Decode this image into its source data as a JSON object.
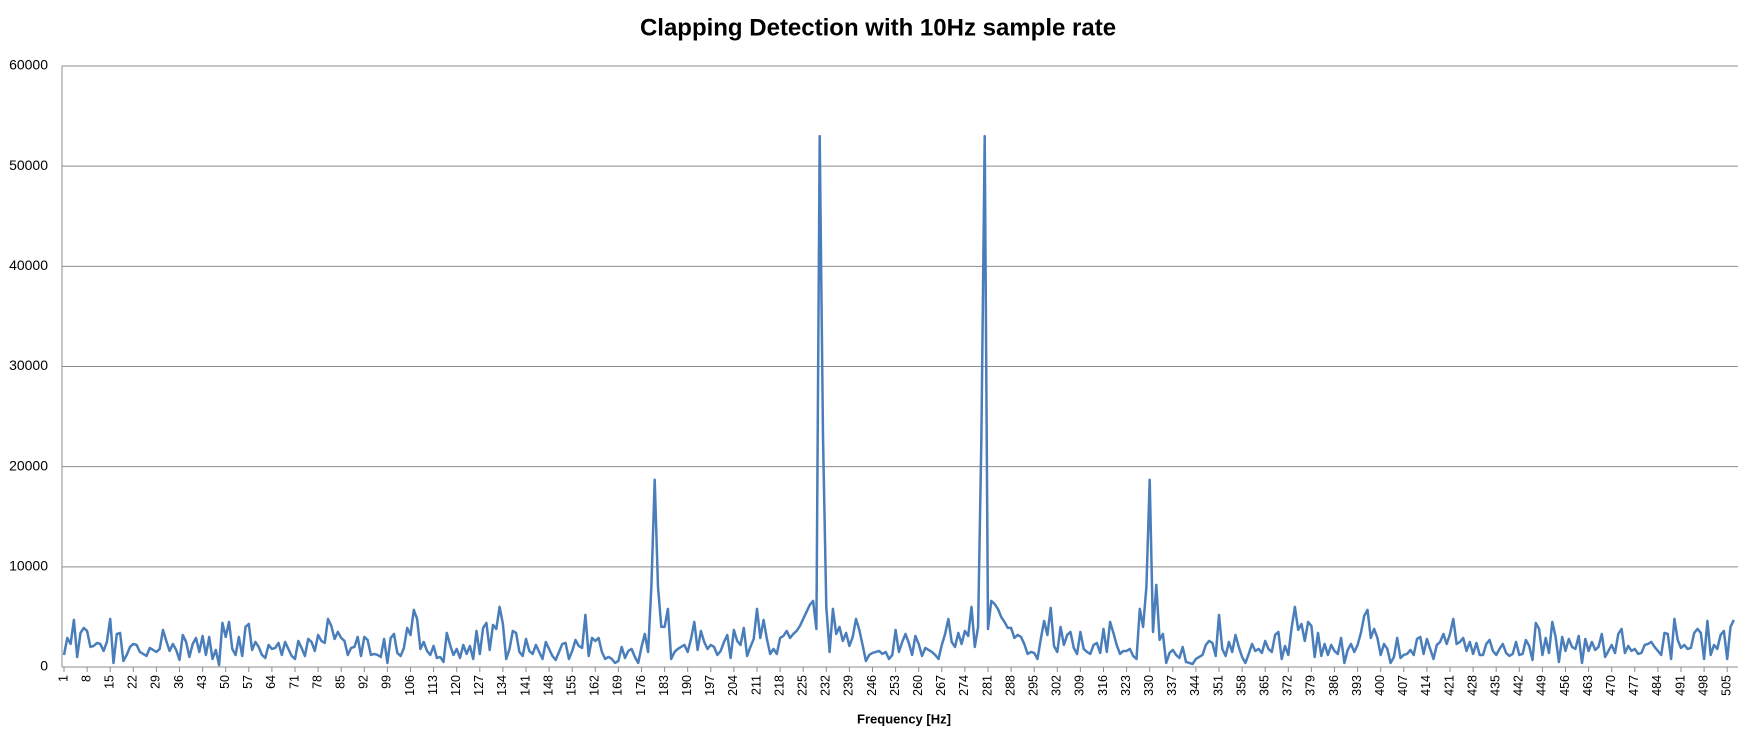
{
  "chart_data": {
    "type": "line",
    "title": "Clapping Detection with 10Hz sample rate",
    "x_label": "Frequency [Hz]",
    "categories": [
      1,
      null,
      null,
      null,
      null,
      null,
      null,
      8,
      null,
      null,
      null,
      null,
      null,
      null,
      15,
      null,
      null,
      null,
      null,
      null,
      null,
      22,
      null,
      null,
      null,
      null,
      null,
      null,
      29,
      null,
      null,
      null,
      null,
      null,
      null,
      36,
      null,
      null,
      null,
      null,
      null,
      null,
      43,
      null,
      null,
      null,
      null,
      null,
      null,
      50,
      null,
      null,
      null,
      null,
      null,
      null,
      57,
      null,
      null,
      null,
      null,
      null,
      null,
      64,
      null,
      null,
      null,
      null,
      null,
      null,
      71,
      null,
      null,
      null,
      null,
      null,
      null,
      78,
      null,
      null,
      null,
      null,
      null,
      null,
      85,
      null,
      null,
      null,
      null,
      null,
      null,
      92,
      null,
      null,
      null,
      null,
      null,
      null,
      99,
      null,
      null,
      null,
      null,
      null,
      null,
      106,
      null,
      null,
      null,
      null,
      null,
      null,
      113,
      null,
      null,
      null,
      null,
      null,
      null,
      120,
      null,
      null,
      null,
      null,
      null,
      null,
      127,
      null,
      null,
      null,
      null,
      null,
      null,
      134,
      null,
      null,
      null,
      null,
      null,
      null,
      141,
      null,
      null,
      null,
      null,
      null,
      null,
      148,
      null,
      null,
      null,
      null,
      null,
      null,
      155,
      null,
      null,
      null,
      null,
      null,
      null,
      162,
      null,
      null,
      null,
      null,
      null,
      null,
      169,
      null,
      null,
      null,
      null,
      null,
      null,
      176,
      null,
      null,
      null,
      null,
      null,
      null,
      183,
      null,
      null,
      null,
      null,
      null,
      null,
      190,
      null,
      null,
      null,
      null,
      null,
      null,
      197,
      null,
      null,
      null,
      null,
      null,
      null,
      204,
      null,
      null,
      null,
      null,
      null,
      null,
      211,
      null,
      null,
      null,
      null,
      null,
      null,
      218,
      null,
      null,
      null,
      null,
      null,
      null,
      225,
      null,
      null,
      null,
      null,
      null,
      null,
      232,
      null,
      null,
      null,
      null,
      null,
      null,
      239,
      null,
      null,
      null,
      null,
      null,
      null,
      246,
      null,
      null,
      null,
      null,
      null,
      null,
      253,
      null,
      null,
      null,
      null,
      null,
      null,
      260,
      null,
      null,
      null,
      null,
      null,
      null,
      267,
      null,
      null,
      null,
      null,
      null,
      null,
      274,
      null,
      null,
      null,
      null,
      null,
      null,
      281,
      null,
      null,
      null,
      null,
      null,
      null,
      288,
      null,
      null,
      null,
      null,
      null,
      null,
      295,
      null,
      null,
      null,
      null,
      null,
      null,
      302,
      null,
      null,
      null,
      null,
      null,
      null,
      309,
      null,
      null,
      null,
      null,
      null,
      null,
      316,
      null,
      null,
      null,
      null,
      null,
      null,
      323,
      null,
      null,
      null,
      null,
      null,
      null,
      330,
      null,
      null,
      null,
      null,
      null,
      null,
      337,
      null,
      null,
      null,
      null,
      null,
      null,
      344,
      null,
      null,
      null,
      null,
      null,
      null,
      351,
      null,
      null,
      null,
      null,
      null,
      null,
      358,
      null,
      null,
      null,
      null,
      null,
      null,
      365,
      null,
      null,
      null,
      null,
      null,
      null,
      372,
      null,
      null,
      null,
      null,
      null,
      null,
      379,
      null,
      null,
      null,
      null,
      null,
      null,
      386,
      null,
      null,
      null,
      null,
      null,
      null,
      393,
      null,
      null,
      null,
      null,
      null,
      null,
      400,
      null,
      null,
      null,
      null,
      null,
      null,
      407,
      null,
      null,
      null,
      null,
      null,
      null,
      414,
      null,
      null,
      null,
      null,
      null,
      null,
      421,
      null,
      null,
      null,
      null,
      null,
      null,
      428,
      null,
      null,
      null,
      null,
      null,
      null,
      435,
      null,
      null,
      null,
      null,
      null,
      null,
      442,
      null,
      null,
      null,
      null,
      null,
      null,
      449,
      null,
      null,
      null,
      null,
      null,
      null,
      456,
      null,
      null,
      null,
      null,
      null,
      null,
      463,
      null,
      null,
      null,
      null,
      null,
      null,
      470,
      null,
      null,
      null,
      null,
      null,
      null,
      477,
      null,
      null,
      null,
      null,
      null,
      null,
      484,
      null,
      null,
      null,
      null,
      null,
      null,
      491,
      null,
      null,
      null,
      null,
      null,
      null,
      498,
      null,
      null,
      null,
      null,
      null,
      null,
      505,
      null,
      null
    ],
    "values": [
      1200,
      2900,
      2300,
      4700,
      1000,
      3400,
      3900,
      3600,
      2000,
      2100,
      2400,
      2300,
      1600,
      2500,
      4800,
      400,
      3300,
      3400,
      600,
      1200,
      2000,
      2300,
      2200,
      1500,
      1300,
      1100,
      1900,
      1700,
      1500,
      1800,
      3700,
      2600,
      1600,
      2300,
      1700,
      700,
      3200,
      2500,
      1000,
      2300,
      2900,
      1500,
      3100,
      1200,
      3000,
      800,
      1700,
      200,
      4400,
      3000,
      4500,
      1800,
      1200,
      3000,
      1100,
      4000,
      4300,
      1700,
      2500,
      2000,
      1200,
      900,
      2200,
      1800,
      1900,
      2400,
      1200,
      2500,
      1800,
      1100,
      800,
      2600,
      1900,
      1100,
      2800,
      2500,
      1600,
      3200,
      2600,
      2400,
      4800,
      4100,
      2800,
      3500,
      2900,
      2600,
      1200,
      1900,
      2000,
      3000,
      1100,
      3000,
      2700,
      1200,
      1300,
      1200,
      1000,
      2800,
      400,
      2900,
      3300,
      1400,
      1100,
      1900,
      3900,
      3200,
      5700,
      4800,
      1800,
      2500,
      1600,
      1200,
      2100,
      900,
      1000,
      500,
      3400,
      2200,
      1200,
      1800,
      900,
      2200,
      1300,
      2100,
      800,
      3600,
      1300,
      3900,
      4400,
      1700,
      4200,
      3800,
      6000,
      4300,
      800,
      1800,
      3600,
      3400,
      1500,
      1100,
      2800,
      1600,
      1300,
      2200,
      1500,
      800,
      2500,
      1800,
      1100,
      700,
      1500,
      2300,
      2400,
      800,
      1600,
      2700,
      2100,
      1900,
      5200,
      1100,
      2900,
      2600,
      2900,
      1500,
      800,
      1000,
      800,
      400,
      600,
      2000,
      900,
      1600,
      1800,
      1000,
      400,
      2000,
      3300,
      1500,
      8100,
      18700,
      8000,
      4000,
      4000,
      5800,
      800,
      1500,
      1800,
      2000,
      2200,
      1500,
      2800,
      4500,
      1700,
      3600,
      2500,
      1800,
      2200,
      2000,
      1200,
      1600,
      2500,
      3200,
      900,
      3700,
      2600,
      2200,
      3900,
      1100,
      2000,
      2800,
      5800,
      2900,
      4700,
      2800,
      1300,
      1800,
      1300,
      2900,
      3100,
      3600,
      2900,
      3300,
      3600,
      4100,
      4800,
      5500,
      6200,
      6600,
      3800,
      53000,
      23000,
      6000,
      1500,
      5800,
      3300,
      4000,
      2600,
      3400,
      2100,
      3000,
      4800,
      3700,
      2200,
      600,
      1200,
      1400,
      1500,
      1600,
      1300,
      1500,
      800,
      1200,
      3700,
      1500,
      2500,
      3300,
      2400,
      1200,
      3100,
      2300,
      1100,
      1900,
      1700,
      1500,
      1200,
      800,
      2200,
      3300,
      4800,
      2500,
      2000,
      3400,
      2300,
      3600,
      3100,
      6000,
      2000,
      4000,
      23000,
      53000,
      3800,
      6600,
      6300,
      5800,
      5000,
      4500,
      3900,
      3900,
      2900,
      3200,
      3000,
      2300,
      1300,
      1500,
      1400,
      800,
      2800,
      4600,
      3200,
      5900,
      2100,
      1500,
      4000,
      2200,
      3200,
      3500,
      1900,
      1300,
      3500,
      1800,
      1500,
      1300,
      2200,
      2400,
      1400,
      3800,
      1500,
      4500,
      3400,
      2200,
      1300,
      1600,
      1600,
      1800,
      1100,
      800,
      5800,
      4000,
      8000,
      18700,
      3500,
      8200,
      2700,
      3300,
      400,
      1400,
      1700,
      1200,
      900,
      2000,
      500,
      400,
      300,
      800,
      1000,
      1200,
      2200,
      2600,
      2400,
      1100,
      5200,
      1800,
      1100,
      2500,
      1500,
      3200,
      2000,
      1000,
      400,
      1300,
      2300,
      1600,
      1800,
      1400,
      2600,
      1800,
      1500,
      3200,
      3500,
      800,
      2100,
      1200,
      3900,
      6000,
      3700,
      4300,
      2600,
      4500,
      4100,
      1000,
      3400,
      1100,
      2300,
      1200,
      2200,
      1600,
      1300,
      2900,
      400,
      1700,
      2300,
      1500,
      2200,
      3400,
      5100,
      5700,
      2900,
      3800,
      2900,
      1200,
      2300,
      1800,
      400,
      1000,
      2900,
      900,
      1200,
      1300,
      1700,
      1200,
      2800,
      3000,
      1300,
      2800,
      1800,
      800,
      2200,
      2500,
      3300,
      2300,
      3300,
      4800,
      2300,
      2500,
      2900,
      1600,
      2500,
      1300,
      2400,
      1200,
      1200,
      2300,
      2700,
      1600,
      1200,
      1800,
      2300,
      1400,
      1100,
      1300,
      2500,
      1200,
      1300,
      2700,
      2100,
      700,
      4400,
      3800,
      1200,
      2900,
      1400,
      4500,
      3000,
      500,
      3000,
      1600,
      2800,
      2000,
      1800,
      3100,
      400,
      2800,
      1600,
      2500,
      1700,
      2000,
      3300,
      1000,
      1600,
      2200,
      1400,
      3300,
      3800,
      1400,
      2100,
      1600,
      1800,
      1300,
      1400,
      2200,
      2300,
      2500,
      2000,
      1600,
      1200,
      3400,
      3300,
      800,
      4800,
      2700,
      1900,
      2200,
      1800,
      1900,
      3400,
      3800,
      3400,
      800,
      4600,
      1200,
      2200,
      1800,
      3200,
      3600,
      800,
      4000,
      4700
    ],
    "color": "#4a7ebb",
    "ylim": [
      0,
      60000
    ],
    "yticks": [
      0,
      10000,
      20000,
      30000,
      40000,
      50000,
      60000
    ],
    "grid": true
  }
}
